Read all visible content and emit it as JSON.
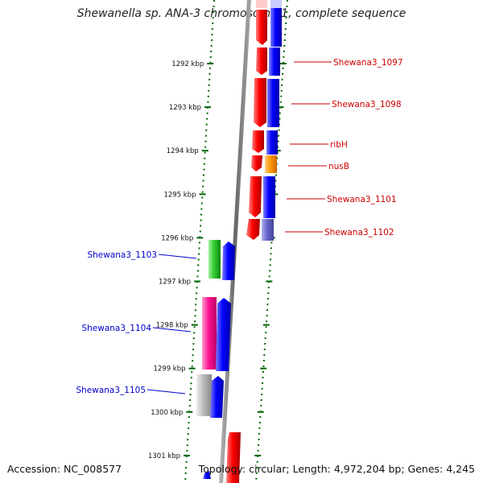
{
  "title": "Shewanella sp. ANA-3 chromosome 1, complete sequence",
  "footer": {
    "accession": "Accession: NC_008577",
    "summary": "Topology: circular; Length: 4,972,204 bp; Genes: 4,245"
  },
  "ruler": {
    "ticks": [
      "1292 kbp",
      "1293 kbp",
      "1294 kbp",
      "1295 kbp",
      "1296 kbp",
      "1297 kbp",
      "1298 kbp",
      "1299 kbp",
      "1300 kbp",
      "1301 kbp"
    ]
  },
  "genes": [
    {
      "label": "Shewana3_1097",
      "strand": "right",
      "color": "#cc0000"
    },
    {
      "label": "Shewana3_1098",
      "strand": "right",
      "color": "#cc0000"
    },
    {
      "label": "ribH",
      "strand": "right",
      "color": "#cc0000"
    },
    {
      "label": "nusB",
      "strand": "right",
      "color": "#cc0000"
    },
    {
      "label": "Shewana3_1101",
      "strand": "right",
      "color": "#cc0000"
    },
    {
      "label": "Shewana3_1102",
      "strand": "right",
      "color": "#cc0000"
    },
    {
      "label": "Shewana3_1103",
      "strand": "left",
      "color": "#0000cc"
    },
    {
      "label": "Shewana3_1104",
      "strand": "left",
      "color": "#0000cc"
    },
    {
      "label": "Shewana3_1105",
      "strand": "left",
      "color": "#0000cc"
    }
  ],
  "colors": {
    "forward": "#ff0000",
    "cog_blue": "#0000ff",
    "cog_orange": "#ff9900",
    "cog_lavender": "#6666cc",
    "cog_green": "#33cc33",
    "cog_pink": "#ff1493",
    "cog_gray": "#aaaaaa",
    "ruler_dots": "#006600",
    "backbone": "#777777"
  }
}
